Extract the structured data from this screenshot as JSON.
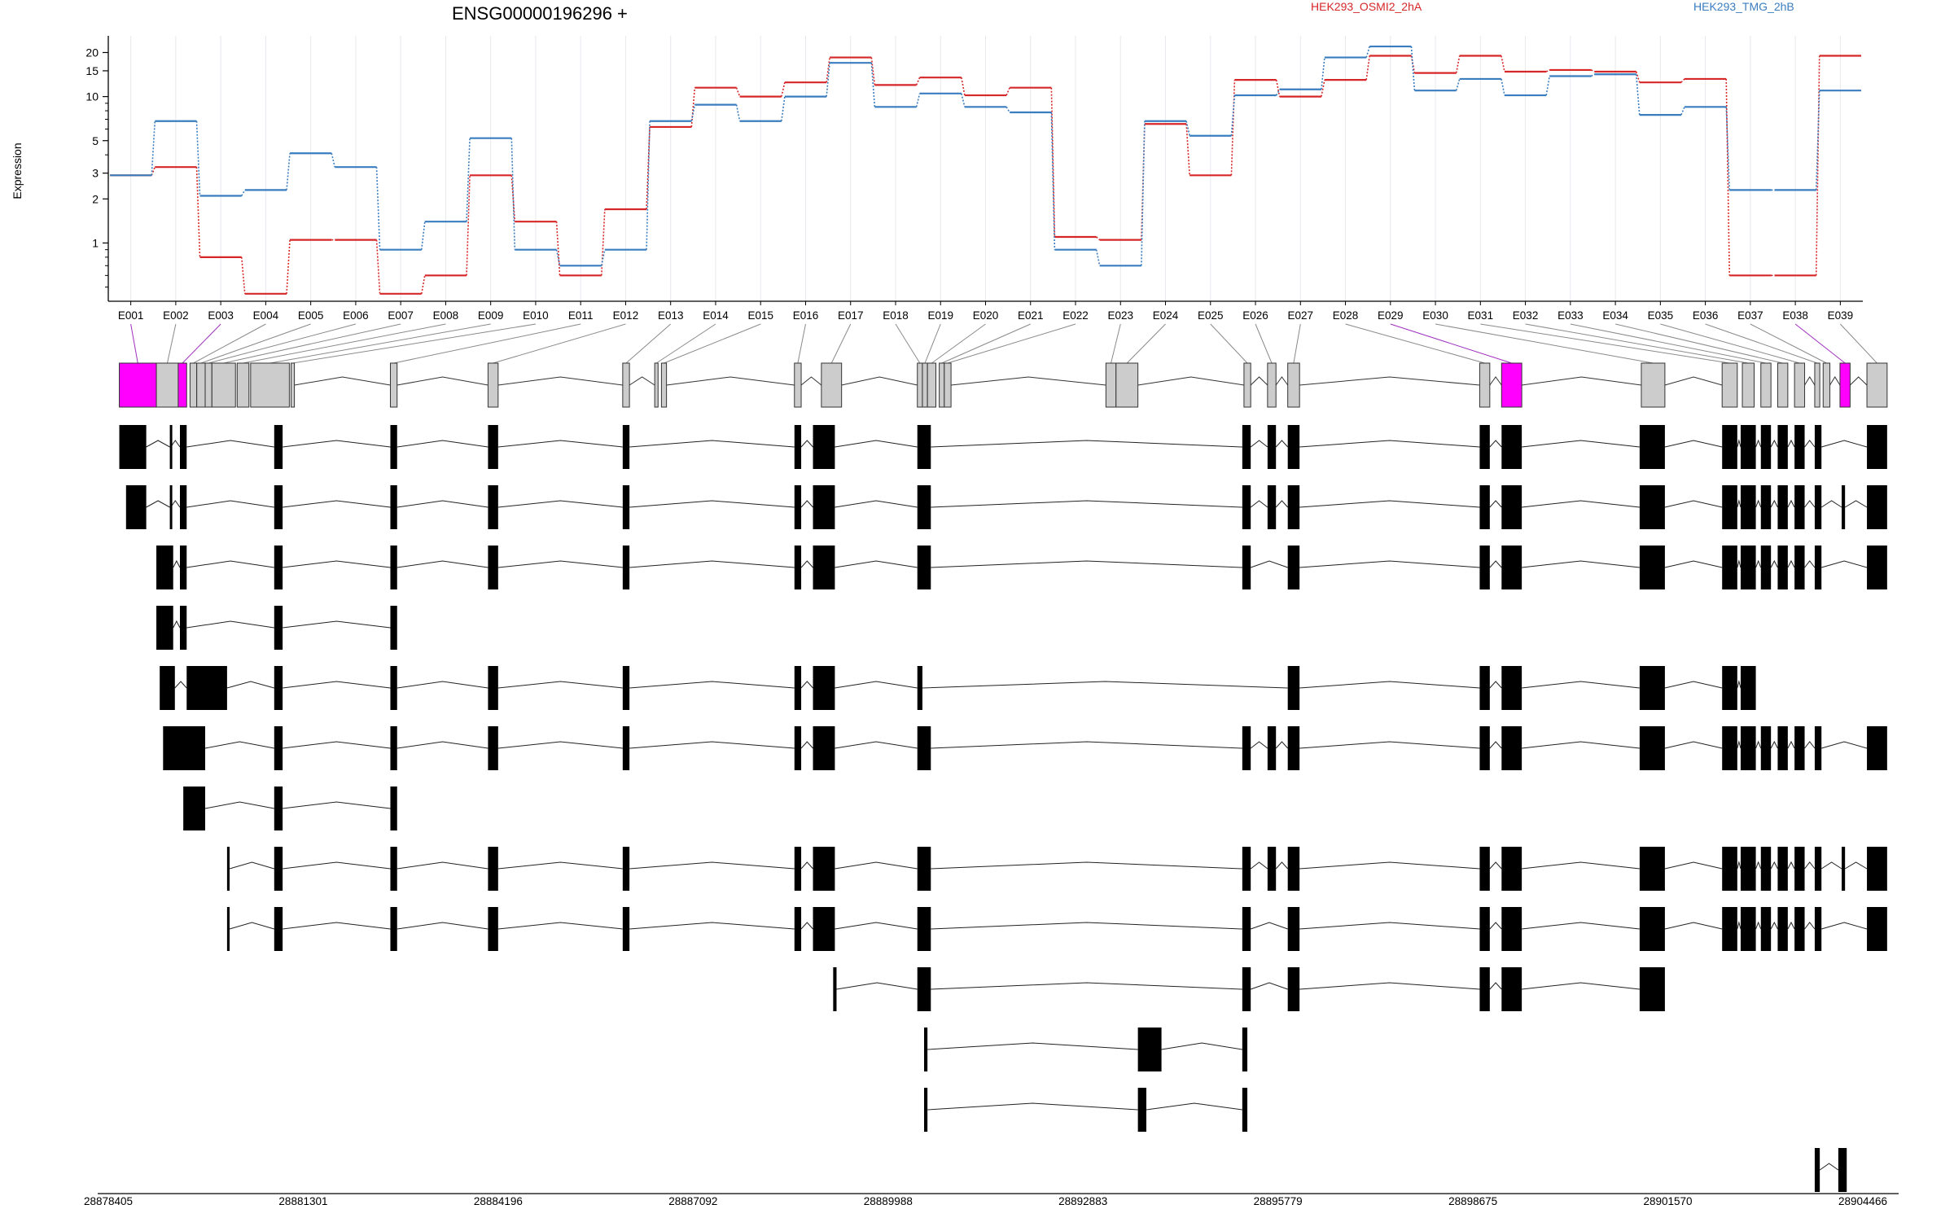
{
  "chart_data": {
    "type": "line",
    "title": "ENSG00000196296 +",
    "ylabel": "Expression",
    "xlabel": "",
    "y_scale": "log",
    "yticks": [
      1,
      2,
      3,
      5,
      10,
      15,
      20
    ],
    "grid": "vertical",
    "legend_placement": "top-right",
    "categories": [
      "E001",
      "E002",
      "E003",
      "E004",
      "E005",
      "E006",
      "E007",
      "E008",
      "E009",
      "E010",
      "E011",
      "E012",
      "E013",
      "E014",
      "E015",
      "E016",
      "E017",
      "E018",
      "E019",
      "E020",
      "E021",
      "E022",
      "E023",
      "E024",
      "E025",
      "E026",
      "E027",
      "E028",
      "E029",
      "E030",
      "E031",
      "E032",
      "E033",
      "E034",
      "E035",
      "E036",
      "E037",
      "E038",
      "E039"
    ],
    "series": [
      {
        "name": "HEK293_OSMI2_2hA",
        "color": "#d62728",
        "values": [
          2.9,
          3.3,
          0.8,
          0.45,
          1.05,
          1.05,
          0.45,
          0.6,
          2.9,
          1.4,
          0.6,
          1.7,
          6.2,
          11.5,
          10,
          12.5,
          18.5,
          12,
          13.5,
          10.2,
          11.5,
          1.1,
          1.05,
          6.5,
          2.9,
          13,
          10,
          13,
          19,
          14.5,
          19,
          14.8,
          15.2,
          14.8,
          12.5,
          13.2,
          0.6,
          0.6,
          19
        ]
      },
      {
        "name": "HEK293_TMG_2hB",
        "color": "#3a7dbf",
        "values": [
          2.9,
          6.8,
          2.1,
          2.3,
          4.1,
          3.3,
          0.9,
          1.4,
          5.2,
          0.9,
          0.7,
          0.9,
          6.8,
          8.8,
          6.8,
          10,
          17,
          8.5,
          10.5,
          8.5,
          7.8,
          0.9,
          0.7,
          6.8,
          5.4,
          10.2,
          11.2,
          18.5,
          22,
          11,
          13.2,
          10.2,
          13.8,
          14.2,
          7.5,
          8.5,
          2.3,
          2.3,
          11
        ]
      }
    ],
    "genomic_coords": [
      "28878405",
      "28881301",
      "28884196",
      "28887092",
      "28889988",
      "28892883",
      "28895779",
      "28898675",
      "28901570",
      "28904466"
    ],
    "genome_range": [
      28878405,
      28904466
    ],
    "highlight_color": "#ff00ff",
    "highlighted_exons": [
      "E001",
      "E003",
      "E029",
      "E038"
    ],
    "exon_bins": [
      [
        0.8,
        3.0
      ],
      [
        3.0,
        4.3
      ],
      [
        4.3,
        4.8
      ],
      [
        5.0,
        5.4
      ],
      [
        5.4,
        5.9
      ],
      [
        5.9,
        6.3
      ],
      [
        6.3,
        7.7
      ],
      [
        7.8,
        8.5
      ],
      [
        8.6,
        10.9
      ],
      [
        11.0,
        11.2
      ],
      [
        16.9,
        17.3
      ],
      [
        22.7,
        23.3
      ],
      [
        30.7,
        31.1
      ],
      [
        32.6,
        32.8
      ],
      [
        33.0,
        33.3
      ],
      [
        40.9,
        41.3
      ],
      [
        42.5,
        43.7
      ],
      [
        48.2,
        48.5
      ],
      [
        48.5,
        48.8
      ],
      [
        48.8,
        49.3
      ],
      [
        49.5,
        49.8
      ],
      [
        49.8,
        50.2
      ],
      [
        59.4,
        60.0
      ],
      [
        60.0,
        61.3
      ],
      [
        67.6,
        68.0
      ],
      [
        69.0,
        69.5
      ],
      [
        70.2,
        70.9
      ],
      [
        81.6,
        82.2
      ],
      [
        82.9,
        84.1
      ],
      [
        91.2,
        92.6
      ],
      [
        96.0,
        96.9
      ],
      [
        97.2,
        97.9
      ],
      [
        98.3,
        98.9
      ],
      [
        99.3,
        99.9
      ],
      [
        100.3,
        100.9
      ],
      [
        101.5,
        101.8
      ],
      [
        102.0,
        102.4
      ],
      [
        103.0,
        103.6
      ],
      [
        104.6,
        105.8
      ]
    ],
    "transcripts": [
      [
        [
          0.8,
          2.4
        ],
        [
          3.8,
          3.85
        ],
        [
          4.4,
          4.8
        ],
        [
          10.0,
          10.5
        ],
        [
          16.9,
          17.3
        ],
        [
          22.7,
          23.3
        ],
        [
          30.7,
          31.1
        ],
        [
          40.9,
          41.3
        ],
        [
          42.0,
          43.3
        ],
        [
          48.2,
          49.0
        ],
        [
          67.5,
          68.0
        ],
        [
          69.0,
          69.5
        ],
        [
          70.2,
          70.9
        ],
        [
          81.6,
          82.2
        ],
        [
          82.9,
          84.1
        ],
        [
          91.1,
          92.6
        ],
        [
          96.0,
          96.9
        ],
        [
          97.1,
          98.0
        ],
        [
          98.3,
          98.9
        ],
        [
          99.3,
          99.9
        ],
        [
          100.3,
          100.9
        ],
        [
          101.5,
          101.9
        ],
        [
          104.6,
          105.8
        ]
      ],
      [
        [
          1.2,
          2.4
        ],
        [
          3.8,
          3.85
        ],
        [
          4.4,
          4.8
        ],
        [
          10.0,
          10.5
        ],
        [
          16.9,
          17.3
        ],
        [
          22.7,
          23.3
        ],
        [
          30.7,
          31.1
        ],
        [
          40.9,
          41.3
        ],
        [
          42.0,
          43.3
        ],
        [
          48.2,
          49.0
        ],
        [
          67.5,
          68.0
        ],
        [
          69.0,
          69.5
        ],
        [
          70.2,
          70.9
        ],
        [
          81.6,
          82.2
        ],
        [
          82.9,
          84.1
        ],
        [
          91.1,
          92.6
        ],
        [
          96.0,
          96.9
        ],
        [
          97.1,
          98.0
        ],
        [
          98.3,
          98.9
        ],
        [
          99.3,
          99.9
        ],
        [
          100.3,
          100.9
        ],
        [
          101.5,
          101.9
        ],
        [
          103.1,
          103.3
        ],
        [
          104.6,
          105.8
        ]
      ],
      [
        [
          3.0,
          4.0
        ],
        [
          4.4,
          4.8
        ],
        [
          10.0,
          10.5
        ],
        [
          16.9,
          17.3
        ],
        [
          22.7,
          23.3
        ],
        [
          30.7,
          31.1
        ],
        [
          40.9,
          41.3
        ],
        [
          42.0,
          43.3
        ],
        [
          48.2,
          49.0
        ],
        [
          67.5,
          68.0
        ],
        [
          70.2,
          70.9
        ],
        [
          81.6,
          82.2
        ],
        [
          82.9,
          84.1
        ],
        [
          91.1,
          92.6
        ],
        [
          96.0,
          96.9
        ],
        [
          97.1,
          98.0
        ],
        [
          98.3,
          98.9
        ],
        [
          99.3,
          99.9
        ],
        [
          100.3,
          100.9
        ],
        [
          101.5,
          101.9
        ],
        [
          104.6,
          105.8
        ]
      ],
      [
        [
          3.0,
          4.0
        ],
        [
          4.4,
          4.8
        ],
        [
          10.0,
          10.5
        ],
        [
          16.9,
          17.3
        ]
      ],
      [
        [
          3.2,
          4.1
        ],
        [
          4.8,
          7.2
        ],
        [
          10.0,
          10.5
        ],
        [
          16.9,
          17.3
        ],
        [
          22.7,
          23.3
        ],
        [
          30.7,
          31.1
        ],
        [
          40.9,
          41.3
        ],
        [
          42.0,
          43.3
        ],
        [
          48.2,
          48.5
        ],
        [
          70.2,
          70.9
        ],
        [
          81.6,
          82.2
        ],
        [
          82.9,
          84.1
        ],
        [
          91.1,
          92.6
        ],
        [
          96.0,
          96.9
        ],
        [
          97.1,
          98.0
        ]
      ],
      [
        [
          3.4,
          5.9
        ],
        [
          10.0,
          10.5
        ],
        [
          16.9,
          17.3
        ],
        [
          22.7,
          23.3
        ],
        [
          30.7,
          31.1
        ],
        [
          40.9,
          41.3
        ],
        [
          42.0,
          43.3
        ],
        [
          48.2,
          49.0
        ],
        [
          67.5,
          68.0
        ],
        [
          69.0,
          69.5
        ],
        [
          70.2,
          70.9
        ],
        [
          81.6,
          82.2
        ],
        [
          82.9,
          84.1
        ],
        [
          91.1,
          92.6
        ],
        [
          96.0,
          96.9
        ],
        [
          97.1,
          98.0
        ],
        [
          98.3,
          98.9
        ],
        [
          99.3,
          99.9
        ],
        [
          100.3,
          100.9
        ],
        [
          101.5,
          101.9
        ],
        [
          104.6,
          105.8
        ]
      ],
      [
        [
          4.6,
          5.9
        ],
        [
          10.0,
          10.5
        ],
        [
          16.9,
          17.3
        ]
      ],
      [
        [
          7.2,
          7.35
        ],
        [
          10.0,
          10.5
        ],
        [
          16.9,
          17.3
        ],
        [
          22.7,
          23.3
        ],
        [
          30.7,
          31.1
        ],
        [
          40.9,
          41.3
        ],
        [
          42.0,
          43.3
        ],
        [
          48.2,
          49.0
        ],
        [
          67.5,
          68.0
        ],
        [
          69.0,
          69.5
        ],
        [
          70.2,
          70.9
        ],
        [
          81.6,
          82.2
        ],
        [
          82.9,
          84.1
        ],
        [
          91.1,
          92.6
        ],
        [
          96.0,
          96.9
        ],
        [
          97.1,
          98.0
        ],
        [
          98.3,
          98.9
        ],
        [
          99.3,
          99.9
        ],
        [
          100.3,
          100.9
        ],
        [
          101.5,
          101.9
        ],
        [
          103.1,
          103.3
        ],
        [
          104.6,
          105.8
        ]
      ],
      [
        [
          7.2,
          7.35
        ],
        [
          10.0,
          10.5
        ],
        [
          16.9,
          17.3
        ],
        [
          22.7,
          23.3
        ],
        [
          30.7,
          31.1
        ],
        [
          40.9,
          41.3
        ],
        [
          42.0,
          43.3
        ],
        [
          48.2,
          49.0
        ],
        [
          67.5,
          68.0
        ],
        [
          70.2,
          70.9
        ],
        [
          81.6,
          82.2
        ],
        [
          82.9,
          84.1
        ],
        [
          91.1,
          92.6
        ],
        [
          96.0,
          96.9
        ],
        [
          97.1,
          98.0
        ],
        [
          98.3,
          98.9
        ],
        [
          99.3,
          99.9
        ],
        [
          100.3,
          100.9
        ],
        [
          101.5,
          101.9
        ],
        [
          104.6,
          105.8
        ]
      ],
      [
        [
          43.2,
          43.4
        ],
        [
          48.2,
          49.0
        ],
        [
          67.5,
          68.0
        ],
        [
          70.2,
          70.9
        ],
        [
          81.6,
          82.2
        ],
        [
          82.9,
          84.1
        ],
        [
          91.1,
          92.6
        ]
      ],
      [
        [
          48.6,
          48.8
        ],
        [
          61.3,
          62.7
        ],
        [
          67.5,
          67.8
        ]
      ],
      [
        [
          48.6,
          48.8
        ],
        [
          61.3,
          61.8
        ],
        [
          67.5,
          67.8
        ]
      ],
      [
        [
          101.5,
          101.8
        ],
        [
          102.9,
          103.4
        ]
      ]
    ]
  }
}
